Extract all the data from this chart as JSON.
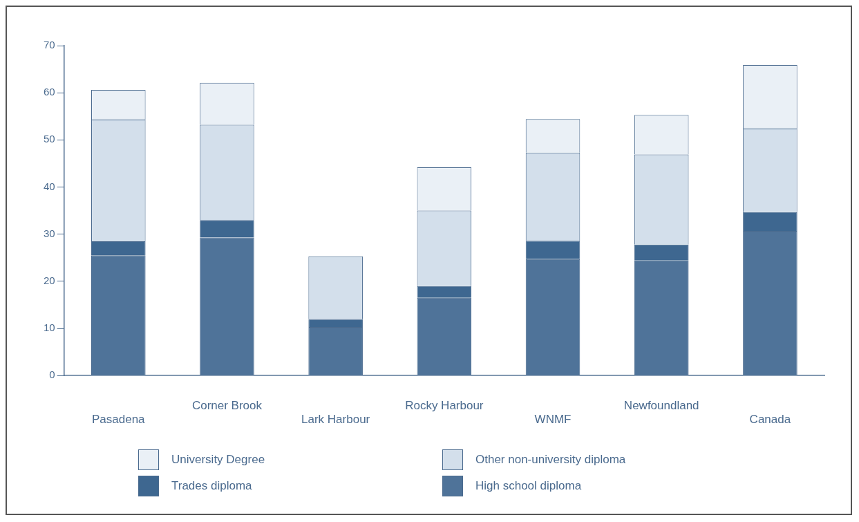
{
  "chart_data": {
    "type": "bar",
    "stacked": true,
    "categories": [
      "Pasadena",
      "Corner Brook",
      "Lark Harbour",
      "Rocky Harbour",
      "WNMF",
      "Newfoundland",
      "Canada"
    ],
    "series": [
      {
        "name": "High school diploma",
        "color": "#4f7399",
        "values": [
          25.5,
          29.3,
          10.3,
          16.5,
          24.7,
          24.4,
          30.7
        ]
      },
      {
        "name": "Trades diploma",
        "color": "#3e6790",
        "values": [
          3.0,
          3.7,
          1.7,
          2.5,
          3.9,
          3.4,
          4.0
        ]
      },
      {
        "name": "Other non-university diploma",
        "color": "#d3dfeb",
        "values": [
          25.8,
          20.2,
          13.3,
          16.0,
          18.7,
          19.1,
          17.7
        ]
      },
      {
        "name": "University Degree",
        "color": "#eaf0f6",
        "values": [
          6.3,
          8.9,
          0,
          9.2,
          7.1,
          8.4,
          13.5
        ]
      }
    ],
    "ylim": [
      0,
      70
    ],
    "yticks": [
      0,
      10,
      20,
      30,
      40,
      50,
      60,
      70
    ],
    "grid": false,
    "legend": "bottom"
  }
}
